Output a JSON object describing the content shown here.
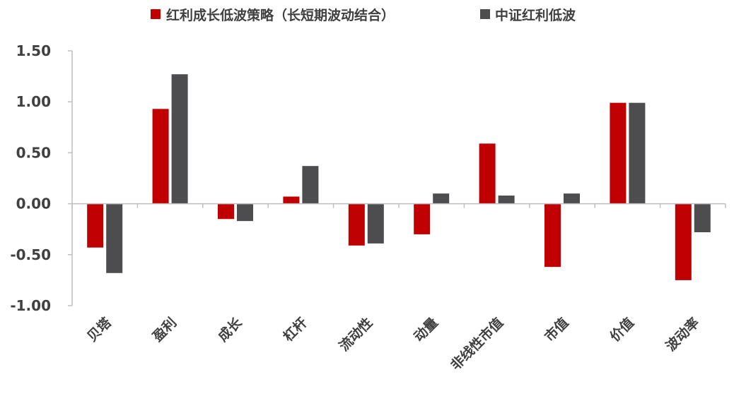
{
  "chart_data": {
    "type": "bar",
    "categories": [
      "贝塔",
      "盈利",
      "成长",
      "杠杆",
      "流动性",
      "动量",
      "非线性市值",
      "市值",
      "价值",
      "波动率"
    ],
    "series": [
      {
        "name": "红利成长低波策略（长短期波动结合）",
        "color": "#C00000",
        "values": [
          -0.43,
          0.93,
          -0.15,
          0.07,
          -0.41,
          -0.3,
          0.59,
          -0.62,
          0.99,
          -0.75
        ]
      },
      {
        "name": "中证红利低波",
        "color": "#4D4D4F",
        "values": [
          -0.68,
          1.27,
          -0.17,
          0.37,
          -0.39,
          0.1,
          0.08,
          0.1,
          0.99,
          -0.28
        ]
      }
    ],
    "yticks": [
      "1.50",
      "1.00",
      "0.50",
      "0.00",
      "-0.50",
      "-1.00"
    ],
    "ylim": [
      -1.0,
      1.5
    ],
    "grid": false,
    "legend_position": "top-center",
    "xlabel": "",
    "ylabel": ""
  }
}
